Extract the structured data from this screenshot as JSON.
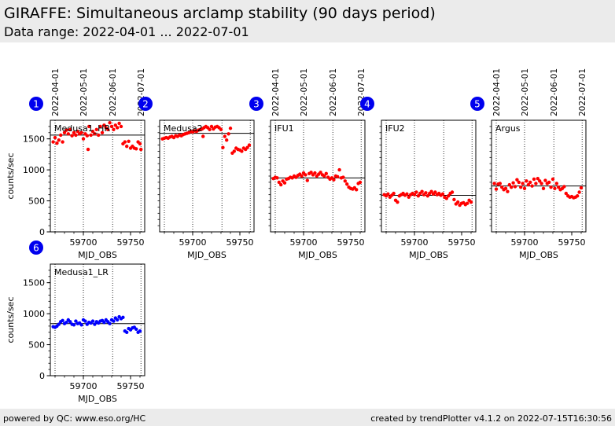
{
  "header": {
    "title": "GIRAFFE: Simultaneous arclamp stability (90 days period)",
    "subtitle": "Data range: 2022-04-01 ... 2022-07-01"
  },
  "footer": {
    "left": "powered by QC: www.eso.org/HC",
    "right": "created by trendPlotter v4.1.2 on 2022-07-15T16:30:56"
  },
  "colors": {
    "red_series": "#ff0000",
    "blue_series": "#0000ff",
    "badge": "#0000ee",
    "header_bg": "#ebebeb"
  },
  "chart_data": [
    {
      "type": "scatter",
      "badge": "1",
      "panel_label": "Medusa1_HR",
      "xlabel": "MJD_OBS",
      "ylabel": "counts/sec",
      "xlim": [
        59665,
        59765
      ],
      "ylim": [
        0,
        1800
      ],
      "xticks": [
        59700,
        59750
      ],
      "yticks": [
        0,
        500,
        1000,
        1500
      ],
      "date_ticks": [
        {
          "label": "2022-04-01",
          "x": 59670
        },
        {
          "label": "2022-05-01",
          "x": 59700
        },
        {
          "label": "2022-06-01",
          "x": 59731
        },
        {
          "label": "2022-07-01",
          "x": 59761
        }
      ],
      "reference_line": 1560,
      "color": "red",
      "x": [
        59668,
        59670,
        59672,
        59674,
        59676,
        59678,
        59680,
        59682,
        59684,
        59686,
        59688,
        59690,
        59692,
        59694,
        59696,
        59698,
        59700,
        59702,
        59704,
        59705,
        59706,
        59708,
        59710,
        59712,
        59714,
        59716,
        59718,
        59720,
        59722,
        59724,
        59726,
        59728,
        59730,
        59732,
        59734,
        59736,
        59738,
        59740,
        59742,
        59744,
        59746,
        59748,
        59750,
        59752,
        59754,
        59756,
        59758,
        59760,
        59761
      ],
      "y": [
        1450,
        1520,
        1430,
        1480,
        1560,
        1450,
        1600,
        1640,
        1580,
        1650,
        1550,
        1600,
        1560,
        1620,
        1580,
        1600,
        1500,
        1580,
        1550,
        1330,
        1700,
        1560,
        1620,
        1580,
        1650,
        1560,
        1700,
        1600,
        1720,
        1680,
        1650,
        1760,
        1700,
        1650,
        1720,
        1680,
        1750,
        1700,
        1420,
        1450,
        1380,
        1460,
        1350,
        1380,
        1350,
        1340,
        1450,
        1420,
        1330
      ]
    },
    {
      "type": "scatter",
      "badge": "2",
      "panel_label": "Medusa2",
      "xlabel": "MJD_OBS",
      "ylabel": "",
      "xlim": [
        59665,
        59765
      ],
      "ylim": [
        0,
        1800
      ],
      "xticks": [
        59700,
        59750
      ],
      "yticks": [],
      "date_ticks": [],
      "reference_line": 1590,
      "color": "red",
      "x": [
        59668,
        59670,
        59672,
        59674,
        59676,
        59678,
        59680,
        59682,
        59684,
        59686,
        59688,
        59690,
        59692,
        59694,
        59696,
        59698,
        59700,
        59702,
        59704,
        59706,
        59708,
        59710,
        59711,
        59712,
        59714,
        59716,
        59718,
        59720,
        59722,
        59724,
        59726,
        59728,
        59730,
        59732,
        59734,
        59736,
        59738,
        59740,
        59742,
        59744,
        59746,
        59748,
        59750,
        59752,
        59754,
        59756,
        59758,
        59760
      ],
      "y": [
        1500,
        1510,
        1520,
        1510,
        1530,
        1540,
        1520,
        1550,
        1540,
        1560,
        1550,
        1570,
        1580,
        1590,
        1600,
        1620,
        1610,
        1630,
        1620,
        1640,
        1650,
        1660,
        1540,
        1680,
        1700,
        1680,
        1650,
        1700,
        1660,
        1690,
        1700,
        1680,
        1650,
        1360,
        1540,
        1480,
        1580,
        1670,
        1270,
        1300,
        1350,
        1330,
        1320,
        1300,
        1350,
        1330,
        1360,
        1400
      ]
    },
    {
      "type": "scatter",
      "badge": "3",
      "panel_label": "IFU1",
      "xlabel": "MJD_OBS",
      "ylabel": "",
      "xlim": [
        59665,
        59765
      ],
      "ylim": [
        0,
        1800
      ],
      "xticks": [
        59700,
        59750
      ],
      "yticks": [],
      "date_ticks": [
        {
          "label": "2022-04-01",
          "x": 59670
        },
        {
          "label": "2022-05-01",
          "x": 59700
        },
        {
          "label": "2022-06-01",
          "x": 59731
        },
        {
          "label": "2022-07-01",
          "x": 59761
        }
      ],
      "reference_line": 870,
      "color": "red",
      "x": [
        59668,
        59670,
        59672,
        59674,
        59676,
        59678,
        59680,
        59682,
        59684,
        59686,
        59688,
        59690,
        59692,
        59694,
        59696,
        59698,
        59700,
        59702,
        59704,
        59706,
        59708,
        59710,
        59712,
        59714,
        59716,
        59718,
        59720,
        59722,
        59724,
        59726,
        59728,
        59730,
        59732,
        59734,
        59736,
        59738,
        59740,
        59742,
        59744,
        59746,
        59748,
        59750,
        59752,
        59754,
        59756,
        59758,
        59760
      ],
      "y": [
        860,
        880,
        870,
        800,
        760,
        820,
        790,
        850,
        860,
        880,
        870,
        900,
        880,
        910,
        930,
        900,
        950,
        920,
        830,
        940,
        960,
        920,
        950,
        900,
        930,
        960,
        920,
        900,
        940,
        880,
        850,
        870,
        840,
        900,
        890,
        1000,
        870,
        880,
        820,
        770,
        720,
        700,
        690,
        710,
        680,
        780,
        800
      ]
    },
    {
      "type": "scatter",
      "badge": "4",
      "panel_label": "IFU2",
      "xlabel": "MJD_OBS",
      "ylabel": "",
      "xlim": [
        59665,
        59765
      ],
      "ylim": [
        0,
        1800
      ],
      "xticks": [
        59700,
        59750
      ],
      "yticks": [],
      "date_ticks": [],
      "reference_line": 590,
      "color": "red",
      "x": [
        59668,
        59670,
        59672,
        59674,
        59676,
        59678,
        59680,
        59682,
        59684,
        59686,
        59688,
        59690,
        59692,
        59694,
        59696,
        59698,
        59700,
        59702,
        59704,
        59706,
        59708,
        59710,
        59712,
        59714,
        59716,
        59718,
        59720,
        59722,
        59724,
        59726,
        59728,
        59730,
        59732,
        59734,
        59736,
        59738,
        59740,
        59742,
        59744,
        59746,
        59748,
        59750,
        59752,
        59754,
        59756,
        59758,
        59760
      ],
      "y": [
        600,
        580,
        610,
        560,
        590,
        620,
        510,
        480,
        580,
        600,
        620,
        590,
        610,
        560,
        600,
        620,
        600,
        640,
        580,
        620,
        650,
        600,
        630,
        580,
        620,
        650,
        610,
        640,
        600,
        620,
        590,
        610,
        560,
        540,
        580,
        620,
        640,
        520,
        450,
        480,
        430,
        460,
        470,
        440,
        460,
        510,
        480
      ]
    },
    {
      "type": "scatter",
      "badge": "5",
      "panel_label": "Argus",
      "xlabel": "MJD_OBS",
      "ylabel": "",
      "xlim": [
        59665,
        59765
      ],
      "ylim": [
        0,
        1800
      ],
      "xticks": [
        59700,
        59750
      ],
      "yticks": [],
      "date_ticks": [
        {
          "label": "2022-04-01",
          "x": 59670
        },
        {
          "label": "2022-05-01",
          "x": 59700
        },
        {
          "label": "2022-06-01",
          "x": 59731
        },
        {
          "label": "2022-07-01",
          "x": 59761
        }
      ],
      "reference_line": 740,
      "color": "red",
      "x": [
        59668,
        59670,
        59672,
        59674,
        59676,
        59678,
        59680,
        59682,
        59684,
        59686,
        59688,
        59690,
        59692,
        59694,
        59696,
        59698,
        59700,
        59702,
        59704,
        59706,
        59708,
        59710,
        59712,
        59714,
        59716,
        59718,
        59720,
        59722,
        59724,
        59726,
        59728,
        59730,
        59732,
        59734,
        59736,
        59738,
        59740,
        59742,
        59744,
        59746,
        59748,
        59750,
        59752,
        59754,
        59756,
        59758,
        59760
      ],
      "y": [
        780,
        690,
        770,
        780,
        720,
        680,
        700,
        650,
        760,
        720,
        790,
        730,
        840,
        800,
        720,
        780,
        700,
        820,
        760,
        800,
        740,
        850,
        780,
        860,
        820,
        780,
        700,
        830,
        780,
        800,
        720,
        850,
        700,
        780,
        720,
        680,
        700,
        730,
        620,
        580,
        560,
        570,
        550,
        560,
        580,
        640,
        710
      ]
    },
    {
      "type": "scatter",
      "badge": "6",
      "panel_label": "Medusa1_LR",
      "xlabel": "MJD_OBS",
      "ylabel": "counts/sec",
      "xlim": [
        59665,
        59765
      ],
      "ylim": [
        0,
        1800
      ],
      "xticks": [
        59700,
        59750
      ],
      "yticks": [
        0,
        500,
        1000,
        1500
      ],
      "date_ticks": [],
      "reference_line": 840,
      "color": "blue",
      "x": [
        59668,
        59670,
        59672,
        59674,
        59676,
        59678,
        59680,
        59682,
        59684,
        59686,
        59688,
        59690,
        59692,
        59694,
        59696,
        59698,
        59700,
        59702,
        59704,
        59706,
        59708,
        59710,
        59712,
        59714,
        59716,
        59718,
        59720,
        59722,
        59724,
        59726,
        59728,
        59730,
        59732,
        59734,
        59736,
        59738,
        59740,
        59742,
        59744,
        59746,
        59748,
        59750,
        59752,
        59754,
        59756,
        59758,
        59760
      ],
      "y": [
        790,
        780,
        800,
        830,
        870,
        890,
        840,
        860,
        900,
        870,
        830,
        820,
        880,
        840,
        850,
        820,
        900,
        880,
        830,
        860,
        850,
        880,
        830,
        870,
        850,
        880,
        890,
        860,
        900,
        870,
        840,
        900,
        880,
        930,
        900,
        950,
        920,
        940,
        720,
        700,
        760,
        740,
        770,
        780,
        750,
        700,
        720
      ]
    }
  ]
}
